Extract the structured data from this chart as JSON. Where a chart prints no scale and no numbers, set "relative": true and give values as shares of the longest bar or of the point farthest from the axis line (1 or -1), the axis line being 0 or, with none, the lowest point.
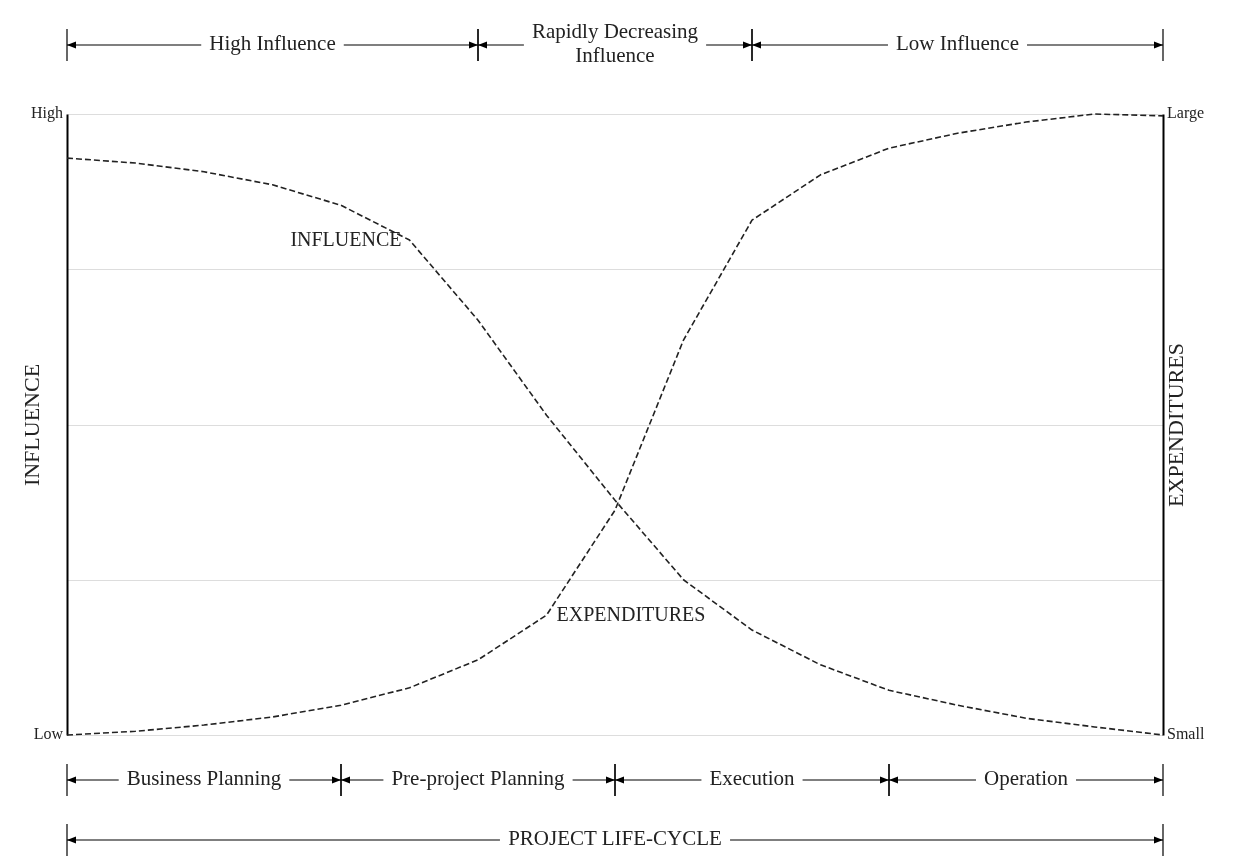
{
  "chart_data": {
    "type": "line",
    "relative": true,
    "xlabel": "PROJECT LIFE-CYCLE",
    "ylabel": "INFLUENCE",
    "y2label": "EXPENDITURES",
    "categories": [
      null,
      null,
      null,
      null,
      null,
      null,
      null,
      null,
      null,
      null,
      null,
      null,
      null,
      null,
      null,
      null,
      null
    ],
    "series": [
      {
        "name": "INFLUENCE",
        "color": "#222222",
        "values": [
          0.929,
          0.921,
          0.907,
          0.886,
          0.853,
          0.797,
          0.668,
          0.515,
          0.378,
          0.25,
          0.169,
          0.113,
          0.072,
          0.048,
          0.027,
          0.013,
          0
        ]
      },
      {
        "name": "EXPENDITURES",
        "color": "#222222",
        "values": [
          0,
          0.006,
          0.016,
          0.029,
          0.048,
          0.076,
          0.121,
          0.193,
          0.362,
          0.636,
          0.829,
          0.902,
          0.945,
          0.969,
          0.987,
          1.0,
          0.997
        ]
      }
    ],
    "annotations": [
      "High",
      "Low",
      "Large",
      "Small",
      "High Influence",
      "Rapidly Decreasing Influence",
      "Low Influence",
      "Business Planning",
      "Pre-project Planning",
      "Execution",
      "Operation"
    ],
    "grid": true,
    "marker": "none",
    "line_style": "dashed"
  }
}
